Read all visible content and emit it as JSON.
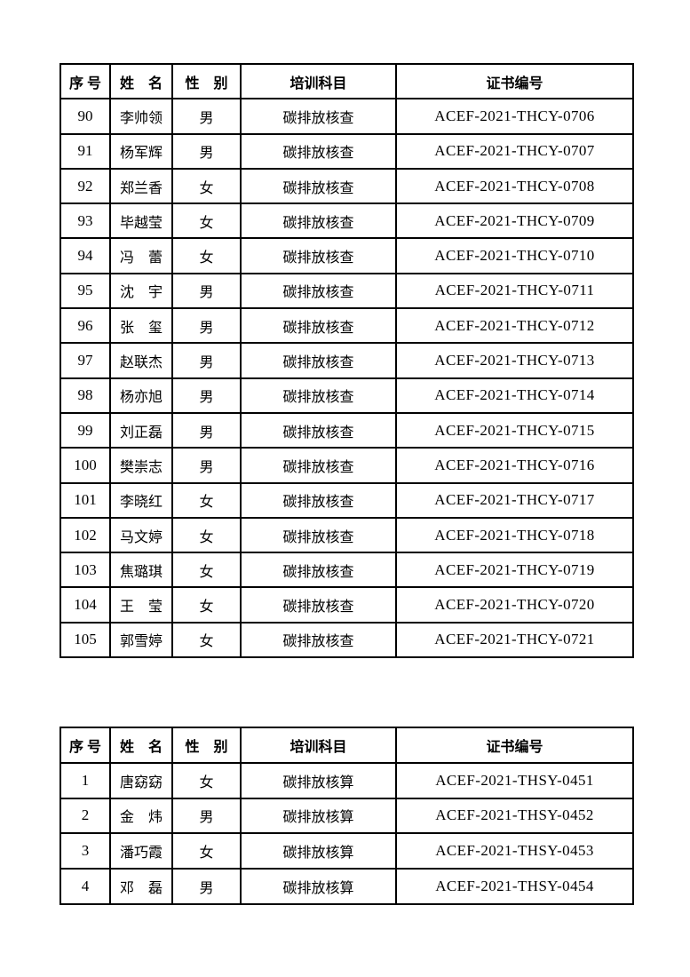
{
  "page": {
    "background_color": "#ffffff",
    "border_color": "#000000",
    "text_color": "#000000"
  },
  "tables": [
    {
      "name": "certificate-table-thcy",
      "headers": [
        "序 号",
        "姓　名",
        "性　别",
        "培训科目",
        "证书编号"
      ],
      "rows": [
        [
          "90",
          "李帅领",
          "男",
          "碳排放核查",
          "ACEF-2021-THCY-0706"
        ],
        [
          "91",
          "杨军辉",
          "男",
          "碳排放核查",
          "ACEF-2021-THCY-0707"
        ],
        [
          "92",
          "郑兰香",
          "女",
          "碳排放核查",
          "ACEF-2021-THCY-0708"
        ],
        [
          "93",
          "毕越莹",
          "女",
          "碳排放核查",
          "ACEF-2021-THCY-0709"
        ],
        [
          "94",
          "冯　蕾",
          "女",
          "碳排放核查",
          "ACEF-2021-THCY-0710"
        ],
        [
          "95",
          "沈　宇",
          "男",
          "碳排放核查",
          "ACEF-2021-THCY-0711"
        ],
        [
          "96",
          "张　玺",
          "男",
          "碳排放核查",
          "ACEF-2021-THCY-0712"
        ],
        [
          "97",
          "赵联杰",
          "男",
          "碳排放核查",
          "ACEF-2021-THCY-0713"
        ],
        [
          "98",
          "杨亦旭",
          "男",
          "碳排放核查",
          "ACEF-2021-THCY-0714"
        ],
        [
          "99",
          "刘正磊",
          "男",
          "碳排放核查",
          "ACEF-2021-THCY-0715"
        ],
        [
          "100",
          "樊崇志",
          "男",
          "碳排放核查",
          "ACEF-2021-THCY-0716"
        ],
        [
          "101",
          "李晓红",
          "女",
          "碳排放核查",
          "ACEF-2021-THCY-0717"
        ],
        [
          "102",
          "马文婷",
          "女",
          "碳排放核查",
          "ACEF-2021-THCY-0718"
        ],
        [
          "103",
          "焦璐琪",
          "女",
          "碳排放核查",
          "ACEF-2021-THCY-0719"
        ],
        [
          "104",
          "王　莹",
          "女",
          "碳排放核查",
          "ACEF-2021-THCY-0720"
        ],
        [
          "105",
          "郭雪婷",
          "女",
          "碳排放核查",
          "ACEF-2021-THCY-0721"
        ]
      ]
    },
    {
      "name": "certificate-table-thsy",
      "headers": [
        "序 号",
        "姓　名",
        "性　别",
        "培训科目",
        "证书编号"
      ],
      "rows": [
        [
          "1",
          "唐窈窈",
          "女",
          "碳排放核算",
          "ACEF-2021-THSY-0451"
        ],
        [
          "2",
          "金　炜",
          "男",
          "碳排放核算",
          "ACEF-2021-THSY-0452"
        ],
        [
          "3",
          "潘巧霞",
          "女",
          "碳排放核算",
          "ACEF-2021-THSY-0453"
        ],
        [
          "4",
          "邓　磊",
          "男",
          "碳排放核算",
          "ACEF-2021-THSY-0454"
        ]
      ]
    }
  ]
}
